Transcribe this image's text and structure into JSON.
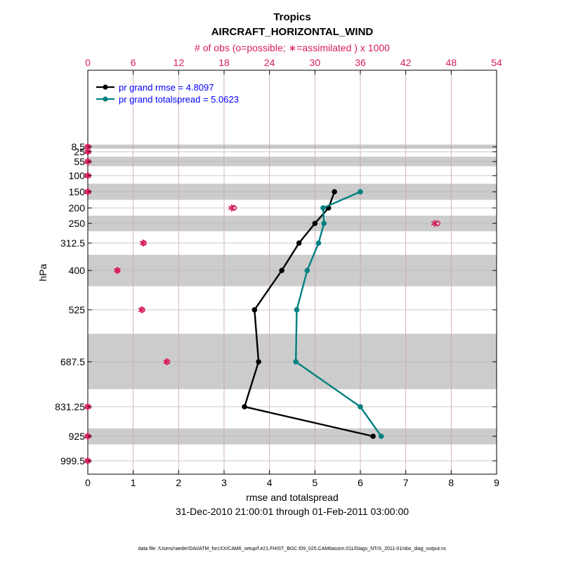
{
  "chart_data": {
    "type": "line",
    "title": "Tropics",
    "subtitle": "AIRCRAFT_HORIZONTAL_WIND",
    "top_axis_label": "# of obs (o=possible; ∗=assimilated ) x 1000",
    "xlabel": "rmse and totalspread",
    "ylabel": "hPa",
    "date_range": "31-Dec-2010 21:00:01 through 01-Feb-2011 03:00:00",
    "footnote": "data file: /Users/raeder/DAI/ATM_forcXX/CAM6_setup/f.e21.FHIST_BGC.f09_025.CAM6assim.011/Diags_NTrS_2011-01/obs_diag_output.nc",
    "xlim": [
      0,
      9
    ],
    "x_ticks": [
      "0",
      "1",
      "2",
      "3",
      "4",
      "5",
      "6",
      "7",
      "8",
      "9"
    ],
    "top_xlim": [
      0,
      54
    ],
    "top_ticks": [
      "0",
      "6",
      "12",
      "18",
      "24",
      "30",
      "36",
      "42",
      "48",
      "54"
    ],
    "levels": [
      "8.5",
      "25",
      "55",
      "100",
      "150",
      "200",
      "250",
      "312.5",
      "400",
      "525",
      "687.5",
      "831.25",
      "925",
      "999.5"
    ],
    "level_values": [
      8.5,
      25,
      55,
      100,
      150,
      200,
      250,
      312.5,
      400,
      525,
      687.5,
      831.25,
      925,
      999.5
    ],
    "series": [
      {
        "name": "pr grand rmse = 4.8097",
        "color": "#000000",
        "levels": [
          150,
          200,
          250,
          312.5,
          400,
          525,
          687.5,
          831.25,
          925
        ],
        "values": [
          5.43,
          5.3,
          5.0,
          4.65,
          4.27,
          3.67,
          3.76,
          3.45,
          6.28
        ]
      },
      {
        "name": "pr grand totalspread = 5.0623",
        "color": "#008080",
        "levels": [
          150,
          200,
          250,
          312.5,
          400,
          525,
          687.5,
          831.25,
          925
        ],
        "values": [
          6.0,
          5.18,
          5.2,
          5.08,
          4.83,
          4.6,
          4.58,
          6.0,
          6.46
        ]
      }
    ],
    "obs_counts": {
      "levels": [
        8.5,
        25,
        55,
        100,
        150,
        200,
        250,
        312.5,
        400,
        525,
        687.5,
        831.25,
        925,
        999.5
      ],
      "possible": [
        0,
        0,
        0,
        0,
        0,
        19.3,
        46.2,
        7.4,
        3.9,
        7.2,
        10.5,
        0,
        0,
        0
      ],
      "assimilated": [
        0,
        0,
        0,
        0,
        0,
        19.0,
        45.8,
        7.3,
        3.9,
        7.1,
        10.4,
        0,
        0,
        0
      ]
    },
    "shaded_bands": [
      [
        2,
        15
      ],
      [
        40,
        70
      ],
      [
        125,
        175
      ],
      [
        225,
        275
      ],
      [
        350,
        450
      ],
      [
        600,
        775
      ],
      [
        900,
        950
      ]
    ]
  },
  "colors": {
    "rmse": "#000000",
    "spread": "#008080",
    "obs": "#d81b60",
    "legend_text": "#0000ff",
    "band": "#cccccc",
    "grid": "#c9a0b0"
  }
}
